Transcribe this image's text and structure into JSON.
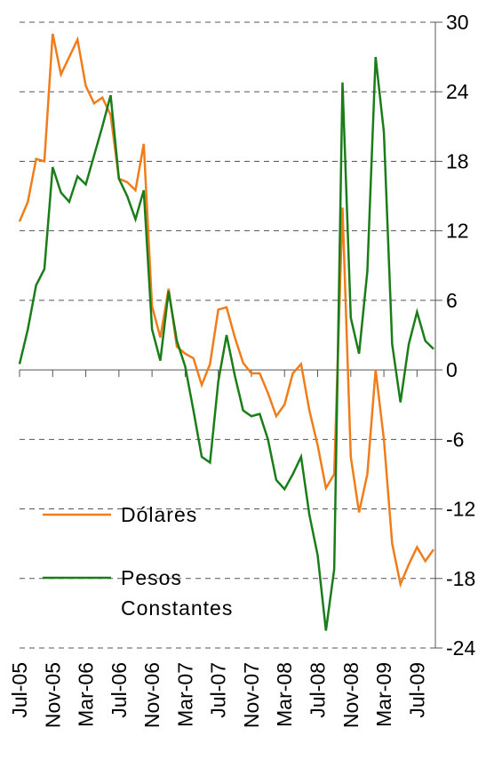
{
  "chart_data": {
    "type": "line",
    "categories": [
      "Jul-05",
      null,
      null,
      null,
      "Nov-05",
      null,
      null,
      null,
      "Mar-06",
      null,
      null,
      null,
      "Jul-06",
      null,
      null,
      null,
      "Nov-06",
      null,
      null,
      null,
      "Mar-07",
      null,
      null,
      null,
      "Jul-07",
      null,
      null,
      null,
      "Nov-07",
      null,
      null,
      null,
      "Mar-08",
      null,
      null,
      null,
      "Jul-08",
      null,
      null,
      null,
      "Nov-08",
      null,
      null,
      null,
      "Mar-09",
      null,
      null,
      null,
      "Jul-09",
      null,
      null
    ],
    "series": [
      {
        "name": "Dólares",
        "color": "#f07c1a",
        "values": [
          12.8,
          14.5,
          18.2,
          18.0,
          29,
          25.5,
          27,
          28.5,
          24.5,
          23,
          23.5,
          22,
          16.5,
          16.2,
          15.5,
          19.5,
          5.5,
          2.8,
          7,
          2,
          1.4,
          1.0,
          -1.3,
          0.5,
          5.2,
          5.4,
          2.8,
          0.6,
          -0.3,
          -0.3,
          -2,
          -4,
          -3,
          -0.3,
          0.5,
          -3.5,
          -6.5,
          -10.2,
          -9,
          14,
          -7.5,
          -12.3,
          -9,
          0,
          -6,
          -15,
          -18.5,
          -16.8,
          -15.3,
          -16.5,
          -15.5
        ]
      },
      {
        "name": "Pesos Constantes",
        "color": "#1a7d1a",
        "values": [
          0.5,
          3.5,
          7.3,
          8.7,
          17.5,
          15.3,
          14.5,
          16.7,
          16,
          18.5,
          21,
          23.7,
          16.5,
          15,
          13,
          15.5,
          3.5,
          0.8,
          6.8,
          2.5,
          0.3,
          -3.5,
          -7.5,
          -8,
          -1,
          3,
          -0.5,
          -3.5,
          -4,
          -3.8,
          -6,
          -9.5,
          -10.3,
          -9,
          -7.5,
          -12.5,
          -16,
          -22.5,
          -17.2,
          24.8,
          4.5,
          1.4,
          8.5,
          27,
          20.5,
          2.2,
          -2.8,
          2.2,
          5,
          2.5,
          1.8
        ]
      }
    ],
    "ylim": [
      -24,
      30
    ],
    "yticks": [
      -24,
      -18,
      -12,
      -6,
      0,
      6,
      12,
      18,
      24,
      30
    ],
    "grid": true
  }
}
